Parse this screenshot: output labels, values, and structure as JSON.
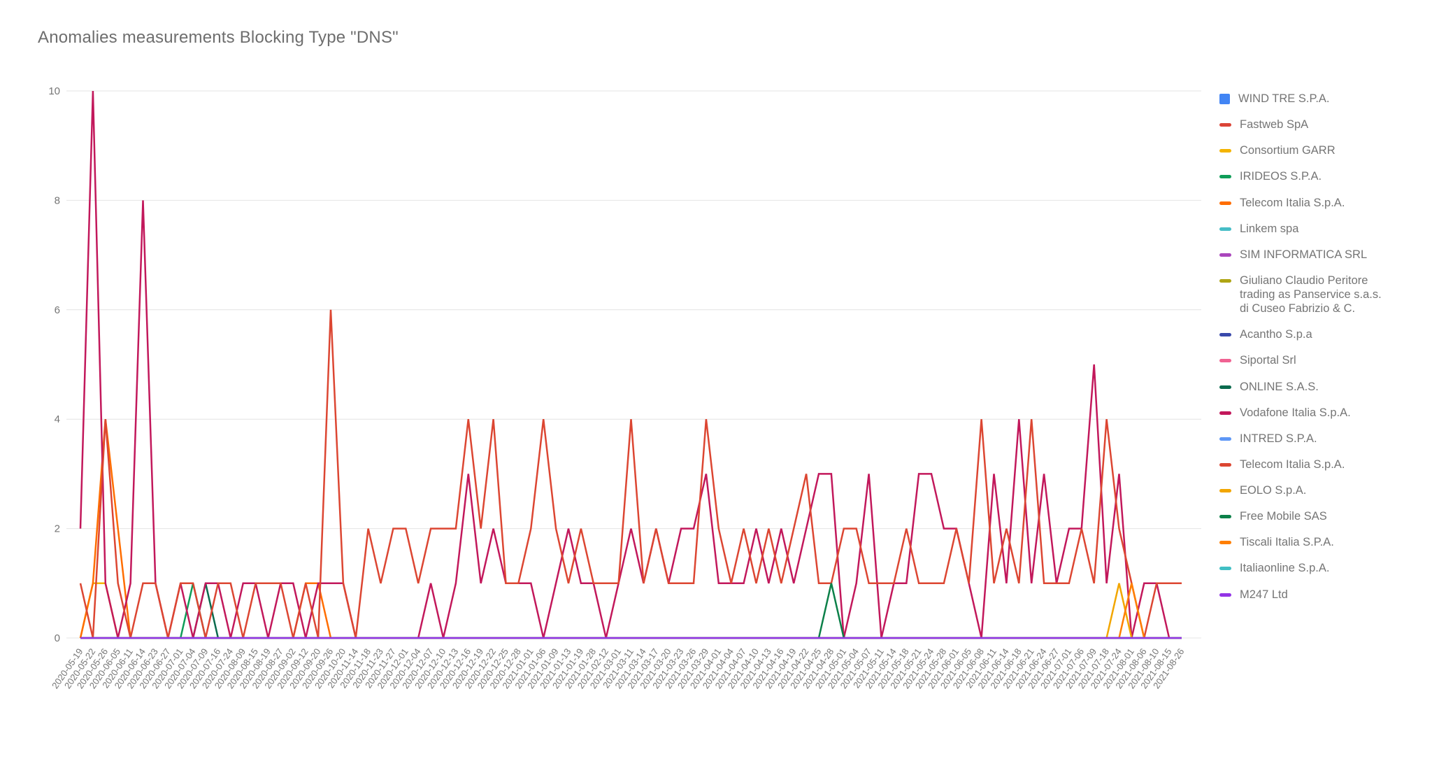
{
  "header": {
    "title": "Anomalies measurements Blocking Type \"DNS\""
  },
  "chart_data": {
    "type": "line",
    "title": "Anomalies measurements Blocking Type \"DNS\"",
    "xlabel": "",
    "ylabel": "",
    "ylim": [
      0,
      10
    ],
    "yticks": [
      0,
      2,
      4,
      6,
      8,
      10
    ],
    "grid": true,
    "legend_position": "right",
    "text_color": "#757575",
    "grid_color": "#e4e4e4",
    "categories": [
      "2020-05-19",
      "2020-05-22",
      "2020-05-26",
      "2020-06-05",
      "2020-06-11",
      "2020-06-14",
      "2020-06-23",
      "2020-06-27",
      "2020-07-01",
      "2020-07-04",
      "2020-07-09",
      "2020-07-16",
      "2020-07-24",
      "2020-08-09",
      "2020-08-15",
      "2020-08-19",
      "2020-08-27",
      "2020-09-02",
      "2020-09-12",
      "2020-09-20",
      "2020-09-26",
      "2020-10-20",
      "2020-11-14",
      "2020-11-18",
      "2020-11-23",
      "2020-11-27",
      "2020-12-01",
      "2020-12-04",
      "2020-12-07",
      "2020-12-10",
      "2020-12-13",
      "2020-12-16",
      "2020-12-19",
      "2020-12-22",
      "2020-12-25",
      "2020-12-28",
      "2021-01-01",
      "2021-01-06",
      "2021-01-09",
      "2021-01-13",
      "2021-01-19",
      "2021-01-28",
      "2021-02-12",
      "2021-03-01",
      "2021-03-11",
      "2021-03-14",
      "2021-03-17",
      "2021-03-20",
      "2021-03-23",
      "2021-03-26",
      "2021-03-29",
      "2021-04-01",
      "2021-04-04",
      "2021-04-07",
      "2021-04-10",
      "2021-04-13",
      "2021-04-16",
      "2021-04-19",
      "2021-04-22",
      "2021-04-25",
      "2021-04-28",
      "2021-05-01",
      "2021-05-04",
      "2021-05-07",
      "2021-05-11",
      "2021-05-14",
      "2021-05-18",
      "2021-05-21",
      "2021-05-24",
      "2021-05-28",
      "2021-06-01",
      "2021-06-05",
      "2021-06-08",
      "2021-06-11",
      "2021-06-14",
      "2021-06-18",
      "2021-06-21",
      "2021-06-24",
      "2021-06-27",
      "2021-07-01",
      "2021-07-06",
      "2021-07-09",
      "2021-07-18",
      "2021-07-24",
      "2021-08-01",
      "2021-08-06",
      "2021-08-10",
      "2021-08-15",
      "2021-08-26"
    ],
    "series": [
      {
        "name": "WIND TRE S.P.A.",
        "color": "#4285F4",
        "swatch": "square",
        "flat": 0
      },
      {
        "name": "Fastweb SpA",
        "color": "#DB4437",
        "swatch": "dash",
        "flat": 0
      },
      {
        "name": "Consortium GARR",
        "color": "#F4B400",
        "swatch": "dash",
        "peaks": {
          "1": 1,
          "2": 1
        }
      },
      {
        "name": "IRIDEOS S.P.A.",
        "color": "#0F9D58",
        "swatch": "dash",
        "peaks": {
          "9": 1
        }
      },
      {
        "name": "Telecom Italia S.p.A.",
        "color": "#FF6D00",
        "swatch": "dash",
        "peaks": {
          "1": 1,
          "2": 4,
          "3": 2,
          "18": 1,
          "19": 1
        }
      },
      {
        "name": "Linkem spa",
        "color": "#46BDC6",
        "swatch": "dash",
        "flat": 0
      },
      {
        "name": "SIM INFORMATICA SRL",
        "color": "#AA46BC",
        "swatch": "dash",
        "flat": 0
      },
      {
        "name": "Giuliano Claudio Peritore trading as Panservice s.a.s. di Cuseo Fabrizio & C.",
        "color": "#AFA514",
        "swatch": "dash",
        "flat": 0
      },
      {
        "name": "Acantho S.p.a",
        "color": "#3949AB",
        "swatch": "dash",
        "flat": 0
      },
      {
        "name": "Siportal Srl",
        "color": "#F06292",
        "swatch": "dash",
        "flat": 0
      },
      {
        "name": "ONLINE S.A.S.",
        "color": "#0B6B4E",
        "swatch": "dash",
        "peaks": {
          "10": 1
        }
      },
      {
        "name": "Vodafone Italia S.p.A.",
        "color": "#C2185B",
        "swatch": "dash",
        "values": [
          2,
          10,
          1,
          0,
          1,
          8,
          1,
          0,
          1,
          0,
          1,
          1,
          0,
          1,
          1,
          0,
          1,
          1,
          0,
          1,
          1,
          1,
          0,
          0,
          0,
          0,
          0,
          0,
          1,
          0,
          1,
          3,
          1,
          2,
          1,
          1,
          1,
          0,
          1,
          2,
          1,
          1,
          0,
          1,
          2,
          1,
          2,
          1,
          2,
          2,
          3,
          1,
          1,
          1,
          2,
          1,
          2,
          1,
          2,
          3,
          3,
          0,
          1,
          3,
          0,
          1,
          1,
          3,
          3,
          2,
          2,
          1,
          0,
          3,
          1,
          4,
          1,
          3,
          1,
          2,
          2,
          5,
          1,
          3,
          0,
          1,
          1,
          0,
          0
        ]
      },
      {
        "name": "INTRED S.P.A.",
        "color": "#5E97F6",
        "swatch": "dash",
        "flat": 0
      },
      {
        "name": "Telecom Italia S.p.A.",
        "color": "#DC4632",
        "swatch": "dash",
        "values": [
          1,
          0,
          4,
          1,
          0,
          1,
          1,
          0,
          1,
          1,
          0,
          1,
          1,
          0,
          1,
          1,
          1,
          0,
          1,
          0,
          6,
          1,
          0,
          2,
          1,
          2,
          2,
          1,
          2,
          2,
          2,
          4,
          2,
          4,
          1,
          1,
          2,
          4,
          2,
          1,
          2,
          1,
          1,
          1,
          4,
          1,
          2,
          1,
          1,
          1,
          4,
          2,
          1,
          2,
          1,
          2,
          1,
          2,
          3,
          1,
          1,
          2,
          2,
          1,
          1,
          1,
          2,
          1,
          1,
          1,
          2,
          1,
          4,
          1,
          2,
          1,
          4,
          1,
          1,
          1,
          2,
          1,
          4,
          2,
          1,
          0,
          1,
          1,
          1
        ]
      },
      {
        "name": "EOLO S.p.A.",
        "color": "#F2A600",
        "swatch": "dash",
        "peaks": {
          "83": 1
        }
      },
      {
        "name": "Free Mobile SAS",
        "color": "#0C8049",
        "swatch": "dash",
        "peaks": {
          "60": 1
        }
      },
      {
        "name": "Tiscali Italia S.P.A.",
        "color": "#FF7F00",
        "swatch": "dash",
        "peaks": {
          "84": 1
        }
      },
      {
        "name": "Italiaonline S.p.A.",
        "color": "#40BFC4",
        "swatch": "dash",
        "flat": 0
      },
      {
        "name": "M247 Ltd",
        "color": "#9334E6",
        "swatch": "dash",
        "flat": 0
      }
    ]
  }
}
